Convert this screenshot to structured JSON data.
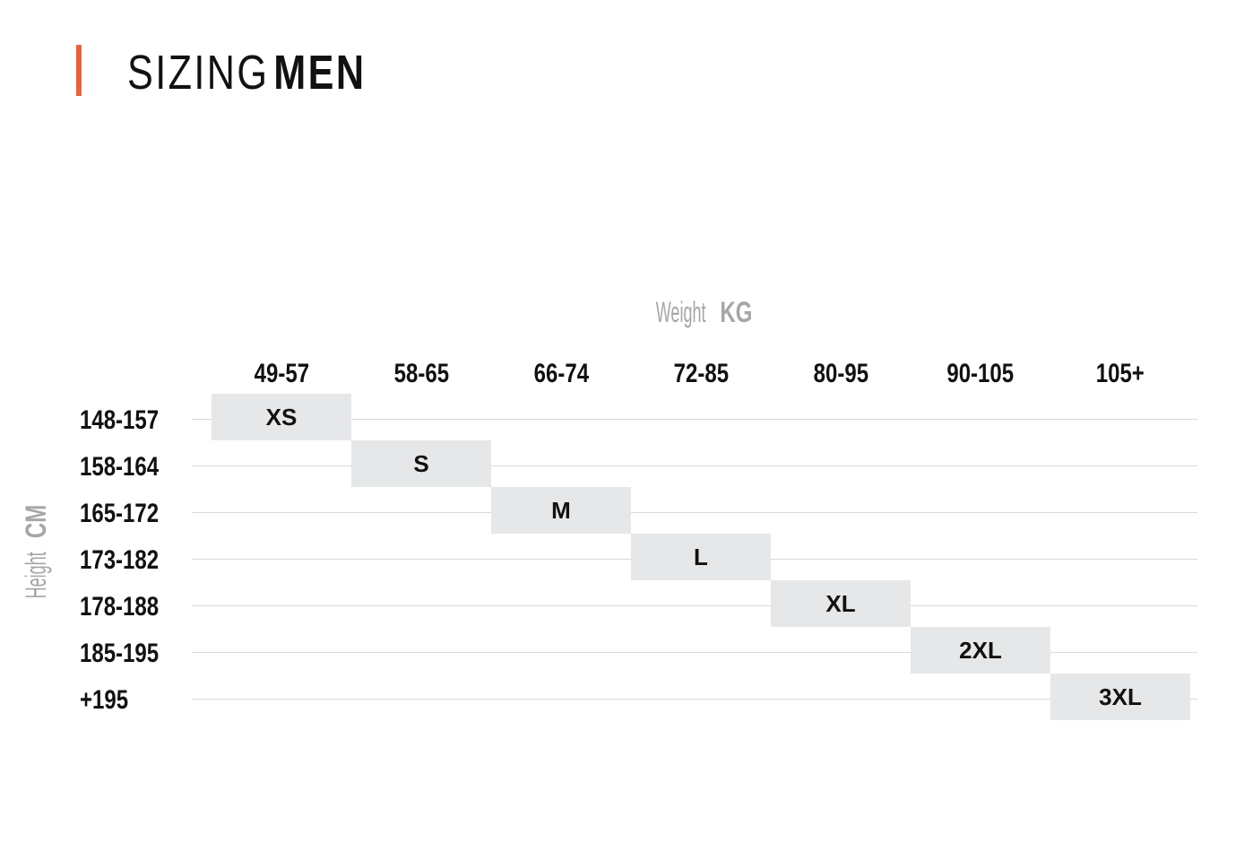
{
  "header": {
    "title_light": "SIZING",
    "title_bold": "MEN",
    "accent_color": "#e8623b"
  },
  "chart_data": {
    "type": "table",
    "title": "SIZING MEN",
    "xlabel_light": "Weight",
    "xlabel_bold": "KG",
    "ylabel_light": "Height",
    "ylabel_bold": "CM",
    "columns": [
      "49-57",
      "58-65",
      "66-74",
      "72-85",
      "80-95",
      "90-105",
      "105+"
    ],
    "rows": [
      "148-157",
      "158-164",
      "165-172",
      "173-182",
      "178-188",
      "185-195",
      "+195"
    ],
    "cells": [
      {
        "row": 0,
        "col": 0,
        "size": "XS"
      },
      {
        "row": 1,
        "col": 1,
        "size": "S"
      },
      {
        "row": 2,
        "col": 2,
        "size": "M"
      },
      {
        "row": 3,
        "col": 3,
        "size": "L"
      },
      {
        "row": 4,
        "col": 4,
        "size": "XL"
      },
      {
        "row": 5,
        "col": 5,
        "size": "2XL"
      },
      {
        "row": 6,
        "col": 6,
        "size": "3XL"
      }
    ],
    "cell_color": "#e6e7e8",
    "label_color": "#a6a6a6",
    "gridline_color": "#d9d9d9"
  }
}
